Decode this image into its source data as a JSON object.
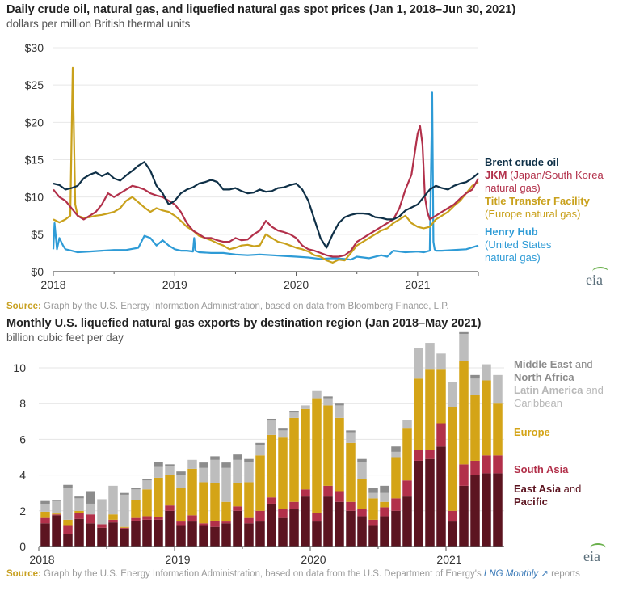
{
  "chart_data": [
    {
      "type": "line",
      "title": "Daily crude oil, natural gas, and liquefied natural gas spot prices (Jan 1, 2018–Jun 30, 2021)",
      "subtitle": "dollars per million British thermal units",
      "xlabel": "",
      "ylabel": "dollars per million British thermal units",
      "ylim": [
        0,
        30
      ],
      "xlim": [
        2018.0,
        2021.5
      ],
      "y_ticks": [
        "$0",
        "$5",
        "$10",
        "$15",
        "$20",
        "$25",
        "$30"
      ],
      "y_tick_values": [
        0,
        5,
        10,
        15,
        20,
        25,
        30
      ],
      "x_ticks": [
        "2018",
        "2019",
        "2020",
        "2021"
      ],
      "x_tick_values": [
        2018,
        2019,
        2020,
        2021
      ],
      "grid": true,
      "legend_placement": "right",
      "source": "Graph by the U.S. Energy Information Administration, based on data from Bloomberg Finance, L.P.",
      "series": [
        {
          "name": "Brent crude oil",
          "legend_bold": "Brent crude oil",
          "legend_rest": "",
          "color": "#0f3047",
          "x": [
            2018.0,
            2018.05,
            2018.1,
            2018.15,
            2018.2,
            2018.25,
            2018.3,
            2018.35,
            2018.4,
            2018.45,
            2018.5,
            2018.55,
            2018.6,
            2018.65,
            2018.7,
            2018.75,
            2018.8,
            2018.85,
            2018.9,
            2018.95,
            2019.0,
            2019.05,
            2019.1,
            2019.15,
            2019.2,
            2019.25,
            2019.3,
            2019.35,
            2019.4,
            2019.45,
            2019.5,
            2019.55,
            2019.6,
            2019.65,
            2019.7,
            2019.75,
            2019.8,
            2019.85,
            2019.9,
            2019.95,
            2020.0,
            2020.05,
            2020.1,
            2020.15,
            2020.2,
            2020.25,
            2020.3,
            2020.35,
            2020.4,
            2020.45,
            2020.5,
            2020.55,
            2020.6,
            2020.65,
            2020.7,
            2020.75,
            2020.8,
            2020.85,
            2020.9,
            2020.95,
            2021.0,
            2021.05,
            2021.1,
            2021.15,
            2021.2,
            2021.25,
            2021.3,
            2021.35,
            2021.4,
            2021.45,
            2021.5
          ],
          "y": [
            11.8,
            11.6,
            11.0,
            11.2,
            11.5,
            12.5,
            13.0,
            13.3,
            12.8,
            13.2,
            12.5,
            12.2,
            12.9,
            13.5,
            14.2,
            14.7,
            13.5,
            11.5,
            10.5,
            9.0,
            9.5,
            10.5,
            11.0,
            11.3,
            11.8,
            12.0,
            12.3,
            12.0,
            11.0,
            11.0,
            11.2,
            10.8,
            10.5,
            10.6,
            11.0,
            10.7,
            10.8,
            11.2,
            11.3,
            11.6,
            11.8,
            11.0,
            9.5,
            7.0,
            4.5,
            3.2,
            5.0,
            6.5,
            7.3,
            7.6,
            7.8,
            7.8,
            7.7,
            7.3,
            7.2,
            7.0,
            7.0,
            7.4,
            8.2,
            8.6,
            9.0,
            10.0,
            11.0,
            11.5,
            11.2,
            11.0,
            11.5,
            11.8,
            12.0,
            12.5,
            13.2
          ]
        },
        {
          "name": "JKM",
          "legend_bold": "JKM",
          "legend_rest": " (Japan/South Korea natural gas)",
          "color": "#b2304a",
          "x": [
            2018.0,
            2018.05,
            2018.1,
            2018.15,
            2018.2,
            2018.25,
            2018.3,
            2018.35,
            2018.4,
            2018.45,
            2018.5,
            2018.55,
            2018.6,
            2018.65,
            2018.7,
            2018.75,
            2018.8,
            2018.85,
            2018.9,
            2018.95,
            2019.0,
            2019.05,
            2019.1,
            2019.15,
            2019.2,
            2019.25,
            2019.3,
            2019.35,
            2019.4,
            2019.45,
            2019.5,
            2019.55,
            2019.6,
            2019.65,
            2019.7,
            2019.75,
            2019.8,
            2019.85,
            2019.9,
            2019.95,
            2020.0,
            2020.05,
            2020.1,
            2020.15,
            2020.2,
            2020.25,
            2020.3,
            2020.35,
            2020.4,
            2020.45,
            2020.5,
            2020.55,
            2020.6,
            2020.65,
            2020.7,
            2020.75,
            2020.8,
            2020.85,
            2020.9,
            2020.95,
            2021.0,
            2021.02,
            2021.04,
            2021.06,
            2021.08,
            2021.1,
            2021.15,
            2021.2,
            2021.25,
            2021.3,
            2021.35,
            2021.4,
            2021.45,
            2021.5
          ],
          "y": [
            11.0,
            10.0,
            9.5,
            8.5,
            7.5,
            7.0,
            7.5,
            8.0,
            9.0,
            10.5,
            10.0,
            10.5,
            11.0,
            11.5,
            11.3,
            11.0,
            10.5,
            10.2,
            10.0,
            9.5,
            9.0,
            8.0,
            6.5,
            5.5,
            5.0,
            4.5,
            4.5,
            4.2,
            4.0,
            4.0,
            4.5,
            4.2,
            4.3,
            5.0,
            5.5,
            6.8,
            6.0,
            5.5,
            5.3,
            5.0,
            4.5,
            3.5,
            3.0,
            2.8,
            2.5,
            2.2,
            2.0,
            2.0,
            2.2,
            2.8,
            4.0,
            4.5,
            5.0,
            5.5,
            6.0,
            6.5,
            7.0,
            8.5,
            11.0,
            13.0,
            18.5,
            19.5,
            17.0,
            10.0,
            8.0,
            7.0,
            7.5,
            8.0,
            8.5,
            9.0,
            9.8,
            10.5,
            11.0,
            12.5
          ]
        },
        {
          "name": "Title Transfer Facility",
          "legend_bold": "Title Transfer Facility",
          "legend_rest": " (Europe natural gas)",
          "color": "#c9a11c",
          "x": [
            2018.0,
            2018.05,
            2018.1,
            2018.14,
            2018.16,
            2018.18,
            2018.2,
            2018.25,
            2018.3,
            2018.35,
            2018.4,
            2018.45,
            2018.5,
            2018.55,
            2018.6,
            2018.65,
            2018.7,
            2018.75,
            2018.8,
            2018.85,
            2018.9,
            2018.95,
            2019.0,
            2019.05,
            2019.1,
            2019.15,
            2019.2,
            2019.25,
            2019.3,
            2019.35,
            2019.4,
            2019.45,
            2019.5,
            2019.55,
            2019.6,
            2019.65,
            2019.7,
            2019.75,
            2019.8,
            2019.85,
            2019.9,
            2019.95,
            2020.0,
            2020.05,
            2020.1,
            2020.15,
            2020.2,
            2020.25,
            2020.3,
            2020.35,
            2020.4,
            2020.45,
            2020.5,
            2020.55,
            2020.6,
            2020.65,
            2020.7,
            2020.75,
            2020.8,
            2020.85,
            2020.9,
            2020.95,
            2021.0,
            2021.05,
            2021.1,
            2021.15,
            2021.2,
            2021.25,
            2021.3,
            2021.35,
            2021.4,
            2021.45,
            2021.5
          ],
          "y": [
            7.0,
            6.6,
            7.0,
            7.5,
            27.3,
            9.0,
            7.5,
            7.2,
            7.3,
            7.5,
            7.6,
            7.8,
            8.0,
            8.5,
            9.5,
            10.0,
            9.3,
            8.6,
            8.0,
            8.5,
            8.2,
            8.0,
            7.5,
            6.8,
            6.0,
            5.5,
            4.8,
            4.5,
            4.2,
            3.8,
            3.5,
            3.0,
            3.2,
            3.5,
            3.6,
            3.4,
            3.5,
            5.0,
            4.5,
            4.0,
            3.8,
            3.5,
            3.2,
            3.0,
            2.7,
            2.2,
            2.0,
            1.5,
            1.2,
            1.6,
            1.5,
            2.5,
            3.5,
            4.0,
            4.5,
            5.0,
            5.5,
            5.8,
            6.5,
            7.0,
            7.5,
            6.5,
            6.0,
            5.8,
            6.0,
            7.0,
            7.5,
            8.0,
            8.8,
            9.5,
            10.5,
            11.5,
            12.0
          ]
        },
        {
          "name": "Henry Hub",
          "legend_bold": "Henry Hub",
          "legend_rest": " (United States natural gas)",
          "color": "#2e9bd6",
          "x": [
            2018.0,
            2018.01,
            2018.03,
            2018.05,
            2018.08,
            2018.1,
            2018.15,
            2018.2,
            2018.3,
            2018.4,
            2018.5,
            2018.6,
            2018.7,
            2018.75,
            2018.8,
            2018.85,
            2018.9,
            2018.95,
            2019.0,
            2019.05,
            2019.1,
            2019.15,
            2019.16,
            2019.17,
            2019.2,
            2019.3,
            2019.4,
            2019.5,
            2019.6,
            2019.7,
            2019.8,
            2019.9,
            2020.0,
            2020.1,
            2020.2,
            2020.3,
            2020.4,
            2020.45,
            2020.5,
            2020.6,
            2020.7,
            2020.75,
            2020.8,
            2020.9,
            2021.0,
            2021.05,
            2021.1,
            2021.12,
            2021.13,
            2021.14,
            2021.15,
            2021.2,
            2021.3,
            2021.4,
            2021.5
          ],
          "y": [
            3.0,
            6.5,
            3.0,
            4.5,
            3.5,
            3.0,
            2.8,
            2.6,
            2.7,
            2.8,
            2.9,
            2.9,
            3.2,
            4.8,
            4.5,
            3.5,
            4.2,
            3.5,
            3.0,
            2.8,
            2.8,
            2.7,
            4.5,
            2.8,
            2.6,
            2.5,
            2.5,
            2.3,
            2.2,
            2.3,
            2.2,
            2.1,
            2.0,
            1.9,
            1.7,
            1.8,
            1.7,
            1.6,
            2.0,
            1.8,
            2.2,
            2.0,
            2.8,
            2.6,
            2.7,
            2.6,
            2.8,
            24.0,
            4.0,
            3.0,
            2.8,
            2.8,
            2.9,
            3.0,
            3.5
          ]
        }
      ]
    },
    {
      "type": "bar",
      "stacked": true,
      "title": "Monthly U.S. liquefied natural gas exports by destination region (Jan 2018–May 2021)",
      "subtitle": "billion cubic feet per day",
      "xlabel": "",
      "ylabel": "billion cubic feet per day",
      "ylim": [
        0,
        10
      ],
      "y_ticks": [
        "0",
        "2",
        "4",
        "6",
        "8",
        "10"
      ],
      "y_tick_values": [
        0,
        2,
        4,
        6,
        8,
        10
      ],
      "x_ticks": [
        "2018",
        "2019",
        "2020",
        "2021"
      ],
      "x_tick_month_index": [
        0,
        12,
        24,
        36
      ],
      "grid": true,
      "legend_placement": "right",
      "source_prefix": "Graph by the U.S. Energy Information Administration, based on data from the U.S. Department of Energy's ",
      "source_link": "LNG Monthly",
      "source_suffix": " reports",
      "categories": [
        "Jan 2018",
        "Feb 2018",
        "Mar 2018",
        "Apr 2018",
        "May 2018",
        "Jun 2018",
        "Jul 2018",
        "Aug 2018",
        "Sep 2018",
        "Oct 2018",
        "Nov 2018",
        "Dec 2018",
        "Jan 2019",
        "Feb 2019",
        "Mar 2019",
        "Apr 2019",
        "May 2019",
        "Jun 2019",
        "Jul 2019",
        "Aug 2019",
        "Sep 2019",
        "Oct 2019",
        "Nov 2019",
        "Dec 2019",
        "Jan 2020",
        "Feb 2020",
        "Mar 2020",
        "Apr 2020",
        "May 2020",
        "Jun 2020",
        "Jul 2020",
        "Aug 2020",
        "Sep 2020",
        "Oct 2020",
        "Nov 2020",
        "Dec 2020",
        "Jan 2021",
        "Feb 2021",
        "Mar 2021",
        "Apr 2021",
        "May 2021"
      ],
      "series": [
        {
          "name": "East Asia and Pacific",
          "legend_bold": "East Asia",
          "legend_rest": " and ",
          "legend_bold2": "Pacific",
          "color": "#5c1420",
          "values": [
            1.3,
            1.75,
            0.7,
            1.55,
            1.3,
            1.05,
            1.35,
            1.0,
            1.45,
            1.5,
            1.5,
            2.0,
            1.2,
            1.4,
            1.2,
            1.1,
            1.3,
            2.0,
            1.3,
            1.4,
            2.4,
            1.6,
            2.1,
            2.8,
            1.4,
            2.8,
            2.5,
            2.0,
            1.7,
            1.2,
            1.7,
            2.0,
            2.8,
            4.8,
            4.9,
            5.6,
            1.4,
            3.4,
            4.0,
            4.1,
            4.1
          ]
        },
        {
          "name": "South Asia",
          "legend_bold": "South Asia",
          "legend_rest": "",
          "color": "#b2304a",
          "values": [
            0.3,
            0.05,
            0.5,
            0.35,
            0.5,
            0.2,
            0.15,
            0.05,
            0.15,
            0.2,
            0.15,
            0.3,
            0.2,
            0.35,
            0.1,
            0.35,
            0.1,
            0.25,
            0.3,
            0.6,
            0.35,
            0.5,
            0.4,
            0.4,
            0.5,
            0.6,
            0.6,
            0.5,
            0.4,
            0.3,
            0.5,
            0.7,
            0.9,
            0.6,
            0.5,
            1.3,
            0.6,
            1.2,
            0.8,
            1.0,
            1.0
          ]
        },
        {
          "name": "Europe",
          "legend_bold": "Europe",
          "legend_rest": "",
          "color": "#d4a417",
          "values": [
            0.35,
            0.05,
            0.3,
            0.1,
            0.0,
            0.0,
            0.3,
            0.05,
            1.0,
            1.5,
            2.2,
            1.7,
            1.9,
            2.6,
            2.3,
            2.1,
            1.1,
            1.3,
            2.0,
            3.1,
            3.5,
            4.0,
            4.7,
            4.5,
            6.4,
            4.5,
            4.1,
            3.3,
            1.7,
            1.2,
            0.3,
            2.3,
            2.9,
            4.0,
            4.5,
            3.0,
            5.8,
            5.8,
            3.7,
            4.2,
            2.9
          ]
        },
        {
          "name": "Latin America and Caribbean",
          "legend_bold": "Latin America",
          "legend_rest": " and Caribbean",
          "color": "#bdbdbd",
          "values": [
            0.4,
            0.7,
            1.8,
            0.7,
            0.6,
            1.4,
            1.6,
            1.8,
            0.6,
            0.5,
            0.6,
            0.5,
            0.7,
            0.5,
            0.8,
            1.3,
            1.9,
            1.3,
            1.1,
            0.6,
            0.8,
            0.4,
            0.3,
            0.2,
            0.4,
            0.4,
            0.7,
            0.6,
            0.9,
            0.3,
            0.5,
            0.3,
            0.5,
            1.7,
            1.5,
            0.9,
            1.4,
            1.5,
            0.9,
            0.9,
            1.6
          ]
        },
        {
          "name": "Middle East and North Africa",
          "legend_bold": "Middle East",
          "legend_rest": " and ",
          "legend_bold2": "North Africa",
          "color": "#8c8c8c",
          "values": [
            0.2,
            0.05,
            0.15,
            0.1,
            0.7,
            0.0,
            0.0,
            0.1,
            0.1,
            0.1,
            0.3,
            0.1,
            0.2,
            0.0,
            0.3,
            0.2,
            0.3,
            0.3,
            0.2,
            0.1,
            0.1,
            0.1,
            0.1,
            0.0,
            0.0,
            0.1,
            0.1,
            0.1,
            0.2,
            0.3,
            0.4,
            0.3,
            0.0,
            0.0,
            0.0,
            0.0,
            0.0,
            0.1,
            0.2,
            0.0,
            0.0
          ]
        }
      ]
    }
  ],
  "labels": {
    "source_label": "Source:",
    "eia_logo": "eia"
  }
}
